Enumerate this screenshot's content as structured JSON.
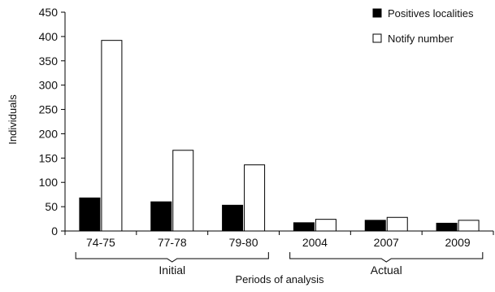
{
  "chart_data": {
    "type": "bar",
    "title": "",
    "xlabel": "Periods of analysis",
    "ylabel": "Individuals",
    "ylim": [
      0,
      450
    ],
    "yticks": [
      0,
      50,
      100,
      150,
      200,
      250,
      300,
      350,
      400,
      450
    ],
    "categories": [
      "74-75",
      "77-78",
      "79-80",
      "2004",
      "2007",
      "2009"
    ],
    "groups": [
      {
        "label": "Initial",
        "categories": [
          "74-75",
          "77-78",
          "79-80"
        ]
      },
      {
        "label": "Actual",
        "categories": [
          "2004",
          "2007",
          "2009"
        ]
      }
    ],
    "series": [
      {
        "name": "Positives localities",
        "color": "#000000",
        "values": [
          68,
          60,
          53,
          17,
          22,
          16
        ]
      },
      {
        "name": "Notify number",
        "color": "#ffffff",
        "values": [
          392,
          166,
          136,
          24,
          28,
          22
        ]
      }
    ],
    "legend_position": "top-right",
    "grid": false
  }
}
